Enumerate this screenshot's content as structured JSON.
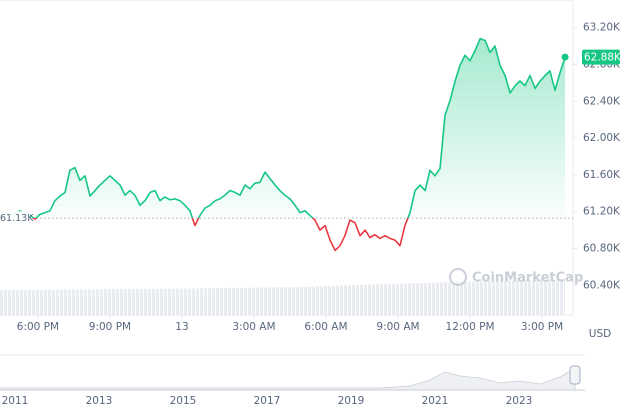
{
  "chart_data": {
    "type": "line",
    "x": [
      16.42,
      16.63,
      16.83,
      17.04,
      17.25,
      17.46,
      17.67,
      17.88,
      18.08,
      18.29,
      18.5,
      18.71,
      18.92,
      19.13,
      19.33,
      19.54,
      19.75,
      19.96,
      20.17,
      20.38,
      20.58,
      20.79,
      21,
      21.21,
      21.42,
      21.63,
      21.83,
      22.04,
      22.25,
      22.46,
      22.67,
      22.88,
      23.08,
      23.29,
      23.5,
      23.71,
      23.92,
      24.13,
      24.33,
      24.54,
      24.75,
      24.96,
      25.17,
      25.38,
      25.58,
      25.79,
      26,
      26.21,
      26.42,
      26.63,
      26.83,
      27.04,
      27.25,
      27.46,
      27.67,
      27.88,
      28.08,
      28.29,
      28.5,
      28.71,
      28.92,
      29.13,
      29.33,
      29.54,
      29.75,
      29.96,
      30.17,
      30.38,
      30.58,
      30.79,
      31,
      31.21,
      31.42,
      31.63,
      31.83,
      32.04,
      32.25,
      32.46,
      32.67,
      32.88,
      33.08,
      33.29,
      33.5,
      33.71,
      33.92,
      34.13,
      34.33,
      34.54,
      34.75,
      34.96,
      35.17,
      35.38,
      35.58,
      35.79,
      36,
      36.21,
      36.42,
      36.63,
      36.83,
      37.04,
      37.25,
      37.46,
      37.67,
      37.88,
      38.08,
      38.29,
      38.5,
      38.71,
      38.92,
      39.13,
      39.33,
      39.54,
      39.75,
      39.96
    ],
    "series": [
      {
        "values": [
          61.16,
          61.17,
          61.17,
          61.18,
          61.21,
          61.18,
          61.16,
          61.12,
          61.17,
          61.19,
          61.21,
          61.32,
          61.37,
          61.41,
          61.65,
          61.68,
          61.54,
          61.59,
          61.37,
          61.43,
          61.49,
          61.54,
          61.59,
          61.54,
          61.49,
          61.38,
          61.43,
          61.38,
          61.27,
          61.32,
          61.41,
          61.43,
          61.32,
          61.36,
          61.33,
          61.34,
          61.32,
          61.27,
          61.21,
          61.05,
          61.16,
          61.24,
          61.27,
          61.32,
          61.34,
          61.38,
          61.43,
          61.41,
          61.38,
          61.49,
          61.45,
          61.51,
          61.52,
          61.63,
          61.56,
          61.49,
          61.43,
          61.38,
          61.34,
          61.27,
          61.19,
          61.21,
          61.16,
          61.11,
          61.0,
          61.05,
          60.89,
          60.78,
          60.83,
          60.94,
          61.11,
          61.08,
          60.94,
          61.0,
          60.92,
          60.95,
          60.91,
          60.94,
          60.91,
          60.89,
          60.83,
          61.05,
          61.19,
          61.43,
          61.49,
          61.43,
          61.65,
          61.59,
          61.67,
          62.25,
          62.41,
          62.62,
          62.79,
          62.9,
          62.84,
          62.95,
          63.08,
          63.06,
          62.93,
          63.0,
          62.79,
          62.68,
          62.49,
          62.57,
          62.62,
          62.57,
          62.68,
          62.54,
          62.62,
          62.68,
          62.73,
          62.52,
          62.71,
          62.88
        ]
      }
    ],
    "up_color": "#16c784",
    "down_color": "#ea3943",
    "baseline": 61.13,
    "baseline_label": "61.13K",
    "current_label": "62.88K",
    "xlim": [
      16.42,
      40.29
    ],
    "xticks": [
      {
        "value": 18,
        "label": "6:00 PM"
      },
      {
        "value": 21,
        "label": "9:00 PM"
      },
      {
        "value": 24,
        "label": "13"
      },
      {
        "value": 27,
        "label": "3:00 AM"
      },
      {
        "value": 30,
        "label": "6:00 AM"
      },
      {
        "value": 33,
        "label": "9:00 AM"
      },
      {
        "value": 36,
        "label": "12:00 PM"
      },
      {
        "value": 39,
        "label": "3:00 PM"
      }
    ],
    "ylim": [
      60.1,
      63.5
    ],
    "yticks": [
      {
        "value": 60.4,
        "label": "60.40K"
      },
      {
        "value": 60.8,
        "label": "60.80K"
      },
      {
        "value": 61.2,
        "label": "61.20K"
      },
      {
        "value": 61.6,
        "label": "61.60K"
      },
      {
        "value": 62.0,
        "label": "62.00K"
      },
      {
        "value": 62.4,
        "label": "62.40K"
      },
      {
        "value": 62.8,
        "label": "62.80K"
      },
      {
        "value": 63.2,
        "label": "63.20K"
      }
    ],
    "y_axis_label": "USD",
    "watermark": "CoinMarketCap",
    "navigator_labels": [
      2011,
      2013,
      2015,
      2017,
      2019,
      2021,
      2023
    ],
    "grid": false
  }
}
